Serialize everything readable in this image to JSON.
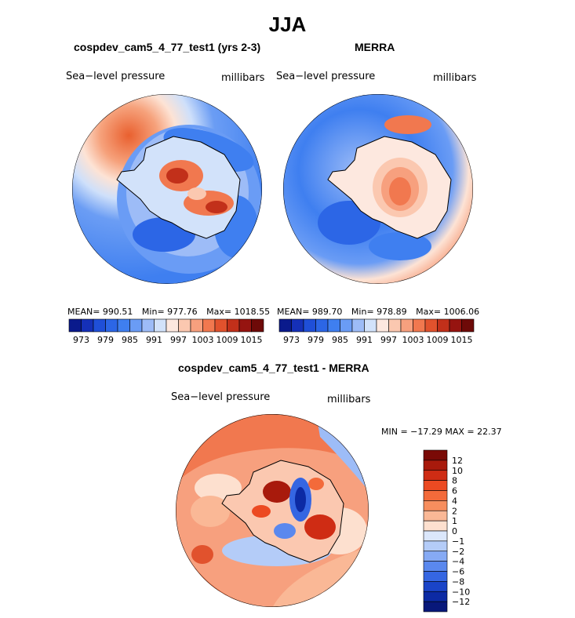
{
  "title": "JJA",
  "panels": [
    {
      "title": "cospdev_cam5_4_77_test1 (yrs 2-3)",
      "variable": "Sea−level pressure",
      "units": "millibars",
      "stats": {
        "mean_label": "MEAN=",
        "mean": "990.51",
        "min_label": "Min=",
        "min": "977.76",
        "max_label": "Max=",
        "max": "1018.55"
      }
    },
    {
      "title": "MERRA",
      "variable": "Sea−level pressure",
      "units": "millibars",
      "stats": {
        "mean_label": "MEAN=",
        "mean": "989.70",
        "min_label": "Min=",
        "min": "978.89",
        "max_label": "Max=",
        "max": "1006.06"
      }
    }
  ],
  "diff_panel": {
    "title": "cospdev_cam5_4_77_test1 - MERRA",
    "variable": "Sea−level pressure",
    "units": "millibars",
    "minmax": "MIN = −17.29  MAX =  22.37"
  },
  "chart_data": [
    {
      "type": "heatmap",
      "title": "cospdev_cam5_4_77_test1 (yrs 2-3)",
      "projection": "south-polar-stereographic",
      "variable": "Sea-level pressure",
      "units": "millibars",
      "mean": 990.51,
      "min": 977.76,
      "max": 1018.55,
      "colorbar": {
        "orientation": "horizontal",
        "boundaries": [
          973,
          976,
          979,
          982,
          985,
          988,
          991,
          994,
          997,
          1000,
          1003,
          1006,
          1009,
          1012,
          1015
        ],
        "tick_labels": [
          "973",
          "979",
          "985",
          "991",
          "997",
          "1003",
          "1009",
          "1015"
        ],
        "colors": [
          "#0a1a8c",
          "#1530b8",
          "#1f4fd8",
          "#2c66e6",
          "#3f7ff0",
          "#6a9cf5",
          "#9dbcf7",
          "#d2e2fa",
          "#fde8df",
          "#fbc8b0",
          "#f7a07e",
          "#f1784f",
          "#e1522d",
          "#c2301a",
          "#961410",
          "#6e0a08"
        ]
      }
    },
    {
      "type": "heatmap",
      "title": "MERRA",
      "projection": "south-polar-stereographic",
      "variable": "Sea-level pressure",
      "units": "millibars",
      "mean": 989.7,
      "min": 978.89,
      "max": 1006.06,
      "colorbar": {
        "orientation": "horizontal",
        "boundaries": [
          973,
          976,
          979,
          982,
          985,
          988,
          991,
          994,
          997,
          1000,
          1003,
          1006,
          1009,
          1012,
          1015
        ],
        "tick_labels": [
          "973",
          "979",
          "985",
          "991",
          "997",
          "1003",
          "1009",
          "1015"
        ],
        "colors": [
          "#0a1a8c",
          "#1530b8",
          "#1f4fd8",
          "#2c66e6",
          "#3f7ff0",
          "#6a9cf5",
          "#9dbcf7",
          "#d2e2fa",
          "#fde8df",
          "#fbc8b0",
          "#f7a07e",
          "#f1784f",
          "#e1522d",
          "#c2301a",
          "#961410",
          "#6e0a08"
        ]
      }
    },
    {
      "type": "heatmap",
      "title": "cospdev_cam5_4_77_test1 - MERRA",
      "projection": "south-polar-stereographic",
      "variable": "Sea-level pressure",
      "units": "millibars",
      "min": -17.29,
      "max": 22.37,
      "colorbar": {
        "orientation": "vertical",
        "boundaries": [
          12,
          10,
          8,
          6,
          4,
          2,
          1,
          0,
          -1,
          -2,
          -4,
          -6,
          -8,
          -10,
          -12
        ],
        "tick_labels": [
          "12",
          "10",
          "8",
          "6",
          "4",
          "2",
          "1",
          "0",
          "−1",
          "−2",
          "−4",
          "−6",
          "−8",
          "−10",
          "−12"
        ],
        "colors": [
          "#7a0a06",
          "#a81a0c",
          "#cf2c14",
          "#ec4a22",
          "#f36a3a",
          "#f78e5e",
          "#fab896",
          "#fde0cf",
          "#dbe7fb",
          "#b4ccf8",
          "#86aaf4",
          "#5a88ee",
          "#3566e2",
          "#1a44c8",
          "#0c2aa4",
          "#08187a"
        ]
      }
    }
  ]
}
